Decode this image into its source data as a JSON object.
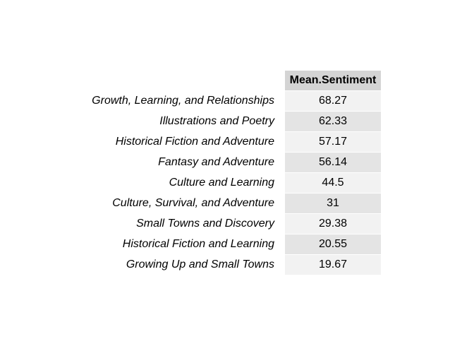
{
  "chart_data": {
    "type": "table",
    "columns": [
      "Mean.Sentiment"
    ],
    "rows": [
      {
        "label": "Growth, Learning, and Relationships",
        "value": "68.27"
      },
      {
        "label": "Illustrations and Poetry",
        "value": "62.33"
      },
      {
        "label": "Historical Fiction and Adventure",
        "value": "57.17"
      },
      {
        "label": "Fantasy and Adventure",
        "value": "56.14"
      },
      {
        "label": "Culture and Learning",
        "value": "44.5"
      },
      {
        "label": "Culture, Survival, and Adventure",
        "value": "31"
      },
      {
        "label": "Small Towns and Discovery",
        "value": "29.38"
      },
      {
        "label": "Historical Fiction and Learning",
        "value": "20.55"
      },
      {
        "label": "Growing Up and Small Towns",
        "value": "19.67"
      }
    ],
    "colors": {
      "header_bg": "#d4d4d4",
      "row_odd_bg": "#f2f2f2",
      "row_even_bg": "#e4e4e4"
    }
  }
}
